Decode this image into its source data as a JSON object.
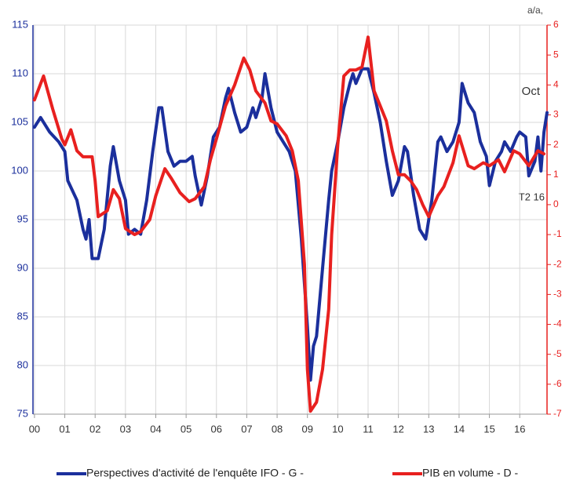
{
  "chart_data": {
    "type": "line",
    "xlim": [
      -0.05,
      16.9
    ],
    "xticks": [
      {
        "value": 0,
        "label": "00"
      },
      {
        "value": 1,
        "label": "01"
      },
      {
        "value": 2,
        "label": "02"
      },
      {
        "value": 3,
        "label": "03"
      },
      {
        "value": 4,
        "label": "04"
      },
      {
        "value": 5,
        "label": "05"
      },
      {
        "value": 6,
        "label": "06"
      },
      {
        "value": 7,
        "label": "07"
      },
      {
        "value": 8,
        "label": "08"
      },
      {
        "value": 9,
        "label": "09"
      },
      10,
      11,
      12,
      13,
      14,
      15,
      16
    ],
    "ylim": [
      75,
      115
    ],
    "yticks": [
      75,
      80,
      85,
      90,
      95,
      100,
      105,
      110,
      115
    ],
    "y2lim": [
      -7,
      6
    ],
    "y2ticks": [
      -7,
      -6,
      -5,
      -4,
      -3,
      -2,
      -1,
      0,
      1,
      2,
      3,
      4,
      5,
      6
    ],
    "y2label": "a/a,",
    "grid": true,
    "annotations": [
      "Oct",
      "T2 16"
    ],
    "series": [
      {
        "name": "Perspectives d'activité de l'enquête IFO - G -",
        "color": "#1b2f9c",
        "axis": "y",
        "x": [
          0,
          0.2,
          0.5,
          0.8,
          1.0,
          1.1,
          1.4,
          1.6,
          1.7,
          1.8,
          1.9,
          2.1,
          2.3,
          2.5,
          2.6,
          2.8,
          3.0,
          3.1,
          3.3,
          3.5,
          3.7,
          3.9,
          4.1,
          4.2,
          4.4,
          4.6,
          4.8,
          5.0,
          5.2,
          5.3,
          5.5,
          5.7,
          5.9,
          6.1,
          6.3,
          6.4,
          6.6,
          6.8,
          7.0,
          7.2,
          7.3,
          7.5,
          7.6,
          7.8,
          8.0,
          8.2,
          8.4,
          8.6,
          8.8,
          9.0,
          9.1,
          9.2,
          9.3,
          9.5,
          9.7,
          9.8,
          10.0,
          10.2,
          10.4,
          10.5,
          10.6,
          10.8,
          11.0,
          11.2,
          11.4,
          11.6,
          11.8,
          12.0,
          12.2,
          12.3,
          12.5,
          12.7,
          12.9,
          13.1,
          13.3,
          13.4,
          13.6,
          13.8,
          14.0,
          14.1,
          14.3,
          14.5,
          14.7,
          14.9,
          15.0,
          15.2,
          15.4,
          15.5,
          15.7,
          15.9,
          16.0,
          16.2,
          16.3,
          16.5,
          16.6,
          16.7,
          16.8,
          16.9
        ],
        "values": [
          104.5,
          105.5,
          104,
          103,
          102,
          99,
          97,
          94,
          93,
          95,
          91,
          91,
          94,
          100.5,
          102.5,
          99,
          97,
          93.5,
          94,
          93.5,
          97,
          102,
          106.5,
          106.5,
          102,
          100.5,
          101,
          101,
          101.5,
          99.5,
          96.5,
          99.5,
          103.5,
          104.5,
          107.5,
          108.5,
          106,
          104,
          104.5,
          106.5,
          105.5,
          107.5,
          110,
          106.5,
          104,
          103,
          102,
          100,
          93,
          84,
          78.5,
          82,
          83,
          90,
          97,
          100,
          103,
          106.5,
          109,
          110,
          109,
          110.5,
          110.5,
          108,
          105,
          101,
          97.5,
          99,
          102.5,
          102,
          97.5,
          94,
          93,
          97,
          103,
          103.5,
          102,
          103,
          105,
          109,
          107,
          106,
          103,
          101.5,
          98.5,
          101,
          102,
          103,
          102,
          103.5,
          104,
          103.5,
          99.5,
          101,
          103.5,
          100,
          104,
          106
        ]
      },
      {
        "name": "PIB en volume - D -",
        "color": "#e8201f",
        "axis": "y2",
        "x": [
          0,
          0.3,
          0.6,
          0.9,
          1.0,
          1.2,
          1.4,
          1.6,
          1.9,
          2.0,
          2.1,
          2.4,
          2.6,
          2.8,
          3.0,
          3.3,
          3.5,
          3.8,
          4.0,
          4.3,
          4.5,
          4.8,
          5.1,
          5.3,
          5.6,
          5.8,
          6.0,
          6.3,
          6.6,
          6.9,
          7.1,
          7.3,
          7.6,
          7.8,
          8.0,
          8.3,
          8.5,
          8.7,
          8.9,
          9.0,
          9.1,
          9.3,
          9.5,
          9.7,
          9.8,
          10.0,
          10.2,
          10.4,
          10.6,
          10.8,
          11.0,
          11.2,
          11.4,
          11.6,
          11.8,
          12.0,
          12.2,
          12.4,
          12.6,
          12.8,
          13.0,
          13.3,
          13.5,
          13.8,
          14.0,
          14.3,
          14.5,
          14.8,
          15.0,
          15.3,
          15.5,
          15.8,
          16.0,
          16.3,
          16.6,
          16.8
        ],
        "values": [
          3.5,
          4.3,
          3.2,
          2.2,
          2.0,
          2.5,
          1.8,
          1.6,
          1.6,
          0.8,
          -0.4,
          -0.2,
          0.5,
          0.2,
          -0.8,
          -1.0,
          -0.9,
          -0.5,
          0.3,
          1.2,
          0.9,
          0.4,
          0.1,
          0.2,
          0.6,
          1.5,
          2.2,
          3.3,
          4.0,
          4.9,
          4.5,
          3.8,
          3.4,
          2.8,
          2.7,
          2.3,
          1.8,
          0.8,
          -2.0,
          -5.5,
          -6.9,
          -6.6,
          -5.5,
          -3.5,
          -1.0,
          2.0,
          4.3,
          4.5,
          4.5,
          4.6,
          5.6,
          3.8,
          3.3,
          2.8,
          1.8,
          1.0,
          1.0,
          0.8,
          0.5,
          0.0,
          -0.4,
          0.3,
          0.6,
          1.4,
          2.3,
          1.3,
          1.2,
          1.4,
          1.3,
          1.5,
          1.1,
          1.8,
          1.7,
          1.3,
          1.8,
          1.7
        ]
      }
    ]
  }
}
